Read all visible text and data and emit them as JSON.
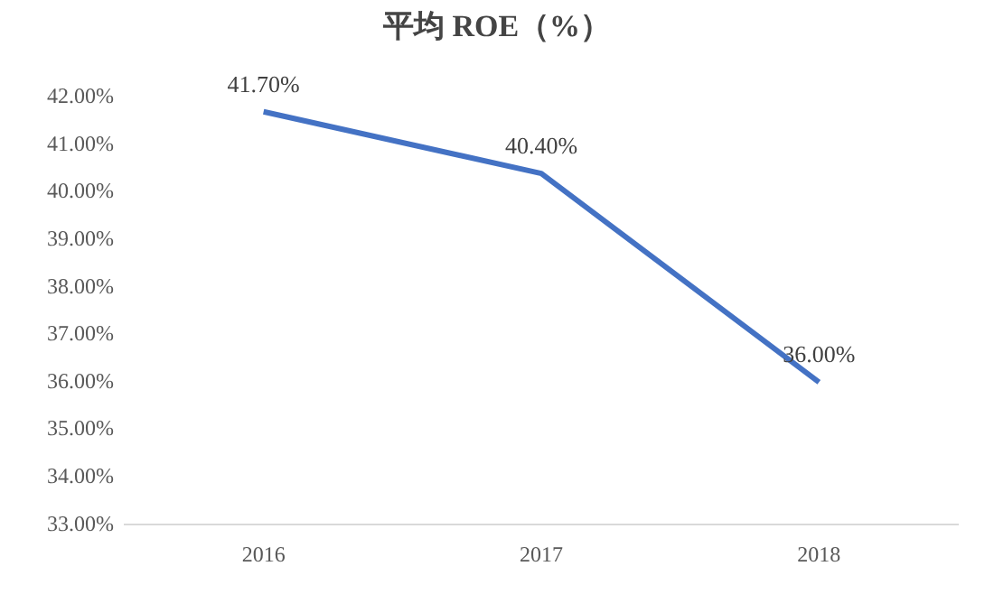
{
  "chart_data": {
    "type": "line",
    "title": "平均 ROE（%）",
    "categories": [
      "2016",
      "2017",
      "2018"
    ],
    "series": [
      {
        "color": "#4472c4",
        "values": [
          41.7,
          40.4,
          36.0
        ],
        "value_labels": [
          "41.70%",
          "40.40%",
          "36.00%"
        ]
      }
    ],
    "ylim": [
      33,
      42
    ],
    "yticks": [
      {
        "value": 33,
        "label": "33.00%"
      },
      {
        "value": 34,
        "label": "34.00%"
      },
      {
        "value": 35,
        "label": "35.00%"
      },
      {
        "value": 36,
        "label": "36.00%"
      },
      {
        "value": 37,
        "label": "37.00%"
      },
      {
        "value": 38,
        "label": "38.00%"
      },
      {
        "value": 39,
        "label": "39.00%"
      },
      {
        "value": 40,
        "label": "40.00%"
      },
      {
        "value": 41,
        "label": "41.00%"
      },
      {
        "value": 42,
        "label": "42.00%"
      }
    ],
    "grid": false,
    "legend": false,
    "marker": "none",
    "line_style": "solid"
  }
}
